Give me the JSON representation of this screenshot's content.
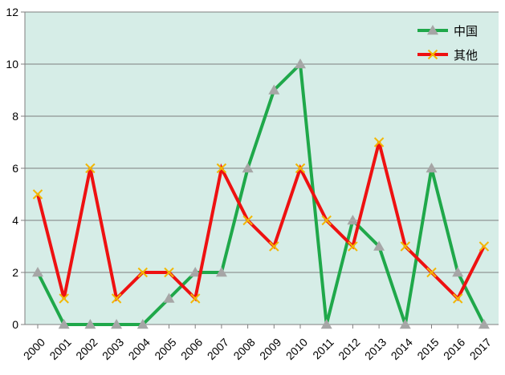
{
  "chart_data": {
    "type": "line",
    "x": [
      "2000",
      "2001",
      "2002",
      "2003",
      "2004",
      "2005",
      "2006",
      "2007",
      "2008",
      "2009",
      "2010",
      "2011",
      "2012",
      "2013",
      "2014",
      "2015",
      "2016",
      "2017"
    ],
    "series": [
      {
        "name": "中国",
        "color": "#1fa84a",
        "marker": "triangle",
        "values": [
          2,
          0,
          0,
          0,
          0,
          1,
          2,
          2,
          6,
          9,
          10,
          0,
          4,
          3,
          0,
          6,
          2,
          0
        ]
      },
      {
        "name": "其他",
        "color": "#ee1111",
        "marker": "x",
        "values": [
          5,
          1,
          6,
          1,
          2,
          2,
          1,
          6,
          4,
          3,
          6,
          4,
          3,
          7,
          3,
          2,
          1,
          3
        ]
      }
    ],
    "ylim": [
      0,
      12
    ],
    "yticks": [
      0,
      2,
      4,
      6,
      8,
      10,
      12
    ],
    "grid": true,
    "legend": "top-right",
    "background": "#d6ede7"
  }
}
